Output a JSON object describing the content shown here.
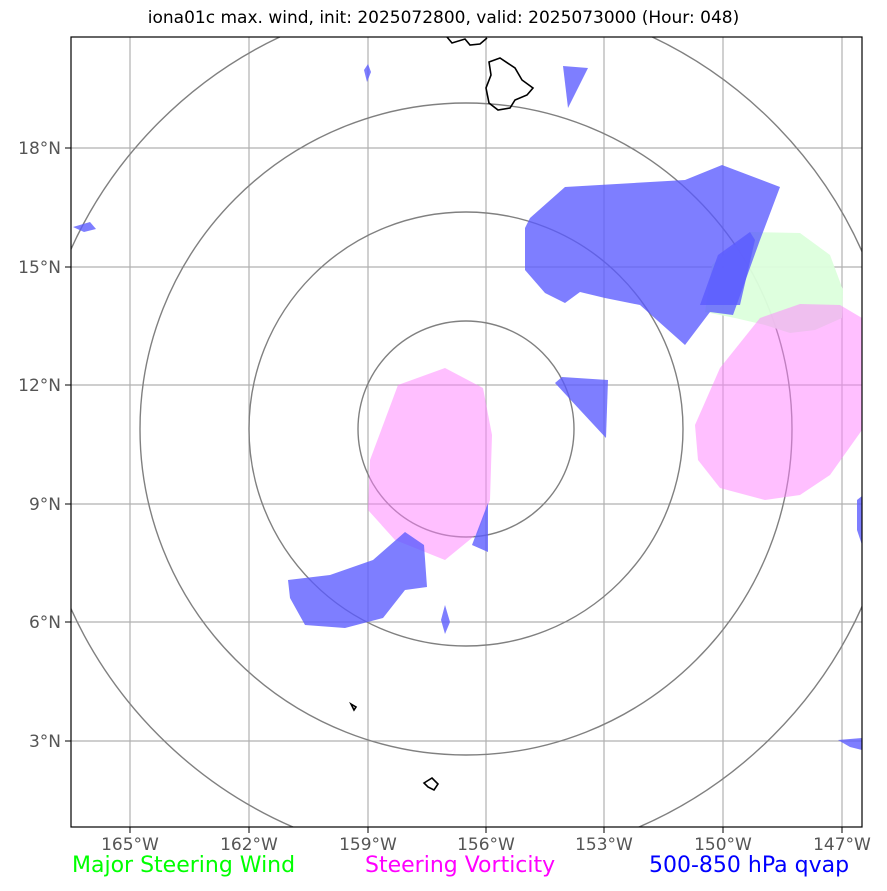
{
  "title": "iona01c max. wind, init: 2025072800, valid: 2025073000 (Hour: 048)",
  "lat_ticks": [
    "18°N",
    "15°N",
    "12°N",
    "9°N",
    "6°N",
    "3°N"
  ],
  "lon_ticks": [
    "165°W",
    "162°W",
    "159°W",
    "156°W",
    "153°W",
    "150°W",
    "147°W"
  ],
  "legend": {
    "wind": "Major Steering Wind",
    "vorticity": "Steering Vorticity",
    "qvap": "500-850 hPa qvap"
  },
  "colors": {
    "wind": "#00ff00",
    "vorticity": "#ff00ff",
    "qvap": "#0000ff",
    "qvap_fill": "#7b7bff",
    "vort_fill": "#ffbcff",
    "wind_fill": "#dcffdc",
    "rings": "#808080",
    "grid": "#b0b0b0",
    "coast": "#000000"
  }
}
